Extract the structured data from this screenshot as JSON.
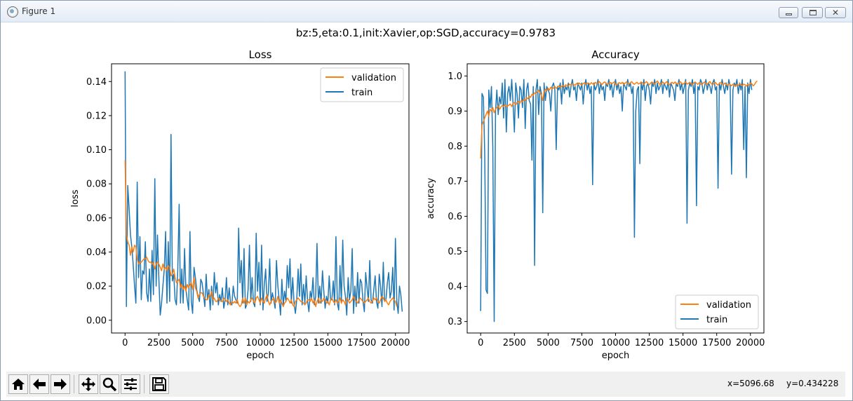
{
  "window": {
    "title": "Figure 1",
    "close_label": "✕"
  },
  "figure": {
    "suptitle": "bz:5,eta:0.1,init:Xavier,op:SGD,accuracy=0.9783"
  },
  "colors": {
    "train": "#1f77b4",
    "validation": "#ff7f0e"
  },
  "toolbar": {
    "icons": [
      "home-icon",
      "back-icon",
      "forward-icon",
      "pan-icon",
      "zoom-icon",
      "configure-subplots-icon",
      "save-icon"
    ],
    "x_readout": "x=5096.68",
    "y_readout": "y=0.434228"
  },
  "chart_data": [
    {
      "type": "line",
      "title": "Loss",
      "xlabel": "epoch",
      "ylabel": "loss",
      "xlim": [
        -1000,
        21000
      ],
      "ylim": [
        -0.0075,
        0.1504
      ],
      "xticks": [
        0,
        2500,
        5000,
        7500,
        10000,
        12500,
        15000,
        17500,
        20000
      ],
      "yticks": [
        0.0,
        0.02,
        0.04,
        0.06,
        0.08,
        0.1,
        0.12,
        0.14
      ],
      "ytick_labels": [
        "0.00",
        "0.02",
        "0.04",
        "0.06",
        "0.08",
        "0.10",
        "0.12",
        "0.14"
      ],
      "legend": "upper right",
      "legend_order": [
        "validation",
        "train"
      ],
      "series": [
        {
          "name": "validation",
          "x_start": 0,
          "x_step": 100,
          "values": [
            0.094,
            0.05,
            0.046,
            0.044,
            0.038,
            0.043,
            0.04,
            0.044,
            0.043,
            0.036,
            0.033,
            0.034,
            0.034,
            0.035,
            0.036,
            0.036,
            0.037,
            0.035,
            0.034,
            0.034,
            0.033,
            0.034,
            0.03,
            0.033,
            0.034,
            0.033,
            0.031,
            0.029,
            0.033,
            0.03,
            0.031,
            0.029,
            0.032,
            0.031,
            0.026,
            0.027,
            0.03,
            0.025,
            0.022,
            0.023,
            0.024,
            0.019,
            0.021,
            0.018,
            0.02,
            0.017,
            0.021,
            0.019,
            0.021,
            0.022,
            0.018,
            0.025,
            0.019,
            0.017,
            0.013,
            0.015,
            0.016,
            0.016,
            0.014,
            0.013,
            0.012,
            0.012,
            0.015,
            0.014,
            0.017,
            0.012,
            0.013,
            0.011,
            0.011,
            0.013,
            0.012,
            0.011,
            0.011,
            0.013,
            0.012,
            0.011,
            0.012,
            0.01,
            0.009,
            0.011,
            0.01,
            0.011,
            0.01,
            0.012,
            0.009,
            0.008,
            0.009,
            0.013,
            0.01,
            0.013,
            0.009,
            0.011,
            0.01,
            0.012,
            0.013,
            0.011,
            0.01,
            0.013,
            0.014,
            0.012,
            0.01,
            0.013,
            0.011,
            0.01,
            0.013,
            0.015,
            0.011,
            0.009,
            0.011,
            0.012,
            0.013,
            0.01,
            0.011,
            0.014,
            0.01,
            0.012,
            0.01,
            0.008,
            0.01,
            0.011,
            0.013,
            0.012,
            0.01,
            0.012,
            0.009,
            0.008,
            0.011,
            0.012,
            0.013,
            0.012,
            0.011,
            0.011,
            0.01,
            0.009,
            0.01,
            0.012,
            0.012,
            0.011,
            0.013,
            0.01,
            0.012,
            0.008,
            0.011,
            0.013,
            0.01,
            0.012,
            0.011,
            0.013,
            0.012,
            0.01,
            0.011,
            0.009,
            0.012,
            0.013,
            0.011,
            0.01,
            0.012,
            0.01,
            0.011,
            0.013,
            0.01,
            0.012,
            0.011,
            0.009,
            0.013,
            0.012,
            0.01,
            0.011,
            0.012,
            0.014,
            0.012,
            0.011,
            0.01,
            0.012,
            0.013,
            0.012,
            0.011,
            0.01,
            0.011,
            0.012,
            0.013,
            0.011,
            0.01,
            0.011,
            0.013,
            0.012,
            0.013,
            0.011,
            0.01,
            0.012,
            0.014,
            0.013,
            0.011,
            0.012,
            0.01,
            0.009,
            0.011,
            0.012,
            0.013,
            0.012,
            0.011,
            0.008
          ]
        },
        {
          "name": "train",
          "x_start": 0,
          "x_step": 100,
          "values": [
            0.146,
            0.008,
            0.079,
            0.065,
            0.05,
            0.043,
            0.033,
            0.02,
            0.01,
            0.081,
            0.025,
            0.049,
            0.012,
            0.029,
            0.027,
            0.046,
            0.016,
            0.011,
            0.03,
            0.011,
            0.041,
            0.015,
            0.083,
            0.02,
            0.05,
            0.024,
            0.003,
            0.01,
            0.02,
            0.03,
            0.052,
            0.01,
            0.046,
            0.011,
            0.109,
            0.023,
            0.027,
            0.012,
            0.009,
            0.029,
            0.068,
            0.01,
            0.03,
            0.01,
            0.042,
            0.018,
            0.012,
            0.006,
            0.052,
            0.011,
            0.004,
            0.031,
            0.025,
            0.018,
            0.014,
            0.011,
            0.024,
            0.022,
            0.015,
            0.008,
            0.027,
            0.012,
            0.018,
            0.006,
            0.02,
            0.009,
            0.028,
            0.016,
            0.022,
            0.009,
            0.015,
            0.011,
            0.019,
            0.007,
            0.012,
            0.025,
            0.009,
            0.019,
            0.01,
            0.009,
            0.02,
            0.014,
            0.012,
            0.01,
            0.054,
            0.022,
            0.035,
            0.01,
            0.042,
            0.007,
            0.009,
            0.018,
            0.044,
            0.011,
            0.025,
            0.01,
            0.008,
            0.051,
            0.017,
            0.034,
            0.009,
            0.044,
            0.006,
            0.021,
            0.03,
            0.011,
            0.016,
            0.036,
            0.01,
            0.016,
            0.012,
            0.007,
            0.035,
            0.02,
            0.012,
            0.003,
            0.024,
            0.009,
            0.017,
            0.011,
            0.032,
            0.019,
            0.036,
            0.01,
            0.025,
            0.01,
            0.004,
            0.012,
            0.03,
            0.014,
            0.033,
            0.009,
            0.021,
            0.01,
            0.026,
            0.011,
            0.005,
            0.017,
            0.013,
            0.025,
            0.009,
            0.014,
            0.045,
            0.01,
            0.02,
            0.01,
            0.029,
            0.017,
            0.007,
            0.014,
            0.01,
            0.026,
            0.012,
            0.012,
            0.023,
            0.009,
            0.049,
            0.01,
            0.006,
            0.032,
            0.01,
            0.047,
            0.02,
            0.014,
            0.003,
            0.025,
            0.012,
            0.017,
            0.042,
            0.004,
            0.02,
            0.008,
            0.028,
            0.01,
            0.024,
            0.022,
            0.011,
            0.005,
            0.028,
            0.019,
            0.011,
            0.035,
            0.012,
            0.01,
            0.018,
            0.026,
            0.011,
            0.007,
            0.027,
            0.02,
            0.008,
            0.034,
            0.011,
            0.012,
            0.022,
            0.028,
            0.013,
            0.017,
            0.031,
            0.006,
            0.048,
            0.011,
            0.004,
            0.02,
            0.015,
            0.005
          ]
        }
      ]
    },
    {
      "type": "line",
      "title": "Accuracy",
      "xlabel": "epoch",
      "ylabel": "accuracy",
      "xlim": [
        -1000,
        21000
      ],
      "ylim": [
        0.2673,
        1.0347
      ],
      "xticks": [
        0,
        2500,
        5000,
        7500,
        10000,
        12500,
        15000,
        17500,
        20000
      ],
      "yticks": [
        0.3,
        0.4,
        0.5,
        0.6,
        0.7,
        0.8,
        0.9,
        1.0
      ],
      "ytick_labels": [
        "0.3",
        "0.4",
        "0.5",
        "0.6",
        "0.7",
        "0.8",
        "0.9",
        "1.0"
      ],
      "legend": "lower right",
      "legend_order": [
        "validation",
        "train"
      ],
      "series": [
        {
          "name": "validation",
          "x_start": 0,
          "x_step": 100,
          "values": [
            0.765,
            0.86,
            0.87,
            0.88,
            0.89,
            0.9,
            0.885,
            0.905,
            0.9,
            0.91,
            0.895,
            0.905,
            0.91,
            0.915,
            0.905,
            0.912,
            0.916,
            0.912,
            0.918,
            0.913,
            0.915,
            0.917,
            0.92,
            0.913,
            0.922,
            0.924,
            0.918,
            0.925,
            0.927,
            0.922,
            0.93,
            0.926,
            0.933,
            0.93,
            0.938,
            0.935,
            0.942,
            0.939,
            0.948,
            0.945,
            0.952,
            0.95,
            0.955,
            0.96,
            0.952,
            0.945,
            0.93,
            0.955,
            0.962,
            0.958,
            0.965,
            0.96,
            0.968,
            0.963,
            0.966,
            0.97,
            0.965,
            0.968,
            0.972,
            0.968,
            0.97,
            0.974,
            0.969,
            0.975,
            0.973,
            0.971,
            0.977,
            0.974,
            0.978,
            0.976,
            0.973,
            0.979,
            0.975,
            0.98,
            0.977,
            0.974,
            0.978,
            0.981,
            0.976,
            0.979,
            0.98,
            0.976,
            0.981,
            0.978,
            0.975,
            0.982,
            0.979,
            0.98,
            0.984,
            0.978,
            0.976,
            0.981,
            0.983,
            0.979,
            0.975,
            0.98,
            0.982,
            0.978,
            0.98,
            0.983,
            0.977,
            0.974,
            0.979,
            0.981,
            0.978,
            0.982,
            0.976,
            0.979,
            0.983,
            0.98,
            0.977,
            0.981,
            0.984,
            0.979,
            0.976,
            0.98,
            0.982,
            0.977,
            0.979,
            0.983,
            0.98,
            0.976,
            0.981,
            0.984,
            0.978,
            0.975,
            0.98,
            0.983,
            0.979,
            0.977,
            0.982,
            0.986,
            0.98,
            0.975,
            0.979,
            0.983,
            0.978,
            0.98,
            0.984,
            0.977,
            0.975,
            0.98,
            0.982,
            0.978,
            0.983,
            0.979,
            0.976,
            0.981,
            0.984,
            0.979,
            0.976,
            0.98,
            0.983,
            0.977,
            0.979,
            0.982,
            0.978,
            0.975,
            0.98,
            0.983,
            0.979,
            0.976,
            0.981,
            0.978,
            0.975,
            0.98,
            0.983,
            0.979,
            0.976,
            0.981,
            0.984,
            0.978,
            0.975,
            0.979,
            0.982,
            0.977,
            0.974,
            0.979,
            0.982,
            0.978,
            0.975,
            0.98,
            0.976,
            0.973,
            0.978,
            0.975,
            0.972,
            0.977,
            0.974,
            0.971,
            0.976,
            0.973,
            0.978,
            0.975,
            0.972,
            0.977,
            0.975,
            0.971,
            0.976,
            0.974,
            0.98,
            0.978,
            0.972,
            0.975,
            0.982,
            0.986
          ]
        },
        {
          "name": "train",
          "x_start": 0,
          "x_step": 100,
          "values": [
            0.33,
            0.95,
            0.94,
            0.78,
            0.39,
            0.38,
            0.96,
            0.91,
            0.97,
            0.8,
            0.3,
            0.9,
            0.96,
            0.89,
            0.94,
            0.92,
            0.98,
            0.88,
            0.99,
            0.84,
            0.95,
            0.97,
            0.93,
            0.99,
            0.92,
            0.84,
            0.98,
            0.95,
            0.88,
            0.97,
            0.96,
            0.91,
            0.99,
            0.85,
            0.96,
            0.98,
            0.93,
            0.92,
            0.76,
            0.97,
            0.46,
            0.96,
            0.99,
            0.89,
            0.97,
            0.95,
            0.61,
            0.98,
            0.93,
            0.97,
            0.96,
            0.95,
            0.9,
            0.97,
            0.98,
            0.96,
            0.79,
            0.97,
            0.96,
            0.98,
            0.92,
            0.99,
            0.95,
            0.97,
            0.96,
            0.98,
            0.94,
            0.97,
            0.99,
            0.96,
            0.97,
            0.93,
            0.98,
            0.97,
            0.96,
            0.98,
            0.92,
            0.97,
            0.99,
            0.96,
            0.98,
            0.95,
            0.97,
            0.69,
            0.98,
            0.96,
            0.97,
            0.99,
            0.95,
            0.98,
            0.96,
            0.97,
            0.93,
            0.98,
            0.97,
            0.99,
            0.96,
            0.98,
            0.94,
            0.97,
            0.99,
            0.96,
            0.98,
            0.95,
            0.97,
            0.9,
            0.98,
            0.97,
            0.96,
            0.99,
            0.97,
            0.98,
            0.95,
            0.97,
            0.54,
            0.9,
            0.96,
            0.97,
            0.75,
            0.98,
            0.96,
            0.99,
            0.93,
            0.97,
            0.98,
            0.96,
            0.92,
            0.98,
            0.97,
            0.99,
            0.95,
            0.98,
            0.96,
            0.97,
            0.99,
            0.95,
            0.98,
            0.97,
            0.96,
            0.99,
            0.94,
            0.98,
            0.97,
            0.96,
            0.93,
            0.98,
            0.97,
            0.99,
            0.96,
            0.98,
            0.95,
            0.97,
            0.99,
            0.58,
            0.96,
            0.98,
            0.97,
            0.99,
            0.95,
            0.98,
            0.63,
            0.97,
            0.96,
            0.99,
            0.98,
            0.95,
            0.97,
            0.99,
            0.96,
            0.98,
            0.97,
            0.95,
            0.98,
            0.99,
            0.96,
            0.97,
            0.68,
            0.98,
            0.96,
            0.99,
            0.97,
            0.95,
            0.98,
            0.96,
            0.99,
            0.97,
            0.72,
            0.96,
            0.98,
            0.97,
            0.99,
            0.95,
            0.98,
            0.96,
            0.99,
            0.79,
            0.97,
            0.71,
            0.98,
            0.95,
            0.99,
            0.96
          ]
        }
      ]
    }
  ]
}
